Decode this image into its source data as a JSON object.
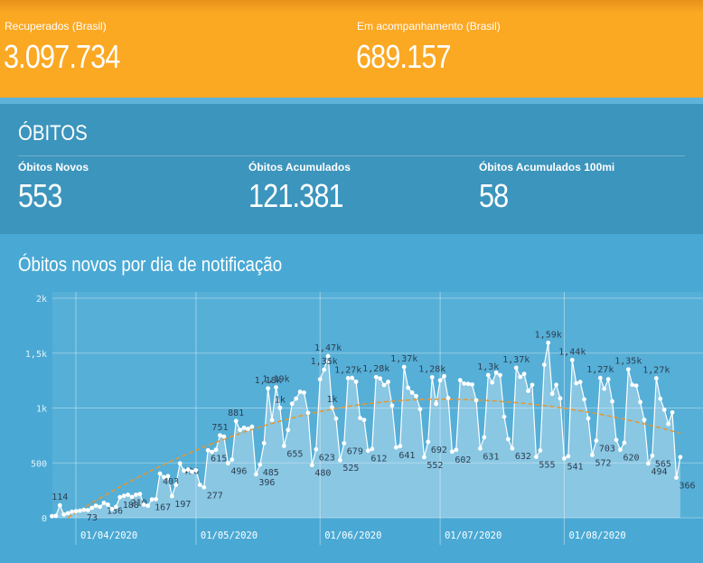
{
  "header": {
    "kpis": [
      {
        "label": "Recuperados (Brasil)",
        "value": "3.097.734"
      },
      {
        "label": "Em acompanhamento (Brasil)",
        "value": "689.157"
      }
    ]
  },
  "obitos": {
    "title": "ÓBITOS",
    "kpis": [
      {
        "label": "Óbitos Novos",
        "value": "553"
      },
      {
        "label": "Óbitos Acumulados",
        "value": "121.381"
      },
      {
        "label": "Óbitos Acumulados 100mi",
        "value": "58"
      }
    ]
  },
  "chart_data": {
    "type": "line",
    "title": "Óbitos novos por dia de notificação",
    "categories": [
      null,
      null,
      null,
      null,
      null,
      null,
      "01/04/2020",
      null,
      null,
      null,
      null,
      null,
      null,
      null,
      null,
      null,
      null,
      null,
      null,
      null,
      null,
      null,
      null,
      null,
      null,
      null,
      null,
      null,
      null,
      null,
      null,
      null,
      null,
      null,
      null,
      null,
      "01/05/2020",
      null,
      null,
      null,
      null,
      null,
      null,
      null,
      null,
      null,
      null,
      null,
      null,
      null,
      null,
      null,
      null,
      null,
      null,
      null,
      null,
      null,
      null,
      null,
      null,
      null,
      null,
      null,
      null,
      null,
      null,
      "01/06/2020",
      null,
      null,
      null,
      null,
      null,
      null,
      null,
      null,
      null,
      null,
      null,
      null,
      null,
      null,
      null,
      null,
      null,
      null,
      null,
      null,
      null,
      null,
      null,
      null,
      null,
      null,
      null,
      null,
      null,
      "01/07/2020",
      null,
      null,
      null,
      null,
      null,
      null,
      null,
      null,
      null,
      null,
      null,
      null,
      null,
      null,
      null,
      null,
      null,
      null,
      null,
      null,
      null,
      null,
      null,
      null,
      null,
      null,
      null,
      null,
      null,
      null,
      "01/08/2020",
      null,
      null,
      null,
      null,
      null,
      null,
      null,
      null,
      null,
      null,
      null,
      null,
      null,
      null,
      null,
      null,
      null,
      null,
      null,
      null,
      null,
      null,
      null,
      null,
      null,
      null,
      null,
      null,
      null
    ],
    "series": [
      {
        "color": "#ffffff",
        "values": [
          15,
          18,
          114,
          30,
          42,
          55,
          60,
          65,
          73,
          70,
          90,
          110,
          100,
          136,
          120,
          80,
          100,
          188,
          200,
          210,
          190,
          210,
          217,
          120,
          110,
          167,
          170,
          403,
          370,
          380,
          197,
          300,
          496,
          430,
          440,
          420,
          435,
          300,
          277,
          615,
          600,
          620,
          751,
          740,
          496,
          530,
          881,
          800,
          820,
          810,
          830,
          396,
          485,
          680,
          1179,
          890,
          1188,
          1001,
          655,
          800,
          1039,
          1086,
          1148,
          1140,
          956,
          480,
          623,
          1262,
          1349,
          1473,
          1005,
          904,
          525,
          679,
          1272,
          1274,
          1239,
          909,
          892,
          612,
          627,
          1282,
          1269,
          1209,
          1238,
          1022,
          641,
          654,
          1374,
          1185,
          1141,
          1109,
          990,
          552,
          692,
          1280,
          1038,
          1252,
          1290,
          1091,
          602,
          620,
          1254,
          1223,
          1220,
          1214,
          1071,
          631,
          733,
          1300,
          1233,
          1322,
          1299,
          921,
          716,
          632,
          1367,
          1284,
          1311,
          1156,
          1211,
          555,
          614,
          1394,
          1594,
          1129,
          1212,
          1088,
          541,
          561,
          1437,
          1226,
          1237,
          1079,
          905,
          572,
          703,
          1274,
          1175,
          1262,
          1060,
          709,
          620,
          684,
          1352,
          1212,
          1204,
          1054,
          892,
          494,
          565,
          1271,
          1085,
          984,
          855,
          960,
          366,
          553
        ],
        "value_labels": [
          null,
          null,
          "114",
          null,
          null,
          null,
          null,
          null,
          "73",
          null,
          null,
          null,
          null,
          "136",
          null,
          null,
          null,
          "188",
          null,
          "210",
          null,
          null,
          null,
          null,
          null,
          "167",
          null,
          "403",
          null,
          null,
          "197",
          null,
          "496",
          null,
          null,
          null,
          null,
          null,
          "277",
          "615",
          null,
          null,
          "751",
          null,
          "496",
          null,
          "881",
          null,
          null,
          null,
          null,
          "396",
          "485",
          null,
          "1,18k",
          null,
          "1,19k",
          "1k",
          "655",
          null,
          null,
          null,
          null,
          null,
          null,
          "480",
          "623",
          null,
          "1,35k",
          "1,47k",
          "1k",
          null,
          "525",
          "679",
          "1,27k",
          null,
          null,
          null,
          null,
          "612",
          null,
          "1,28k",
          null,
          null,
          null,
          null,
          "641",
          null,
          "1,37k",
          null,
          null,
          null,
          null,
          "552",
          "692",
          "1,28k",
          null,
          null,
          null,
          null,
          "602",
          null,
          null,
          null,
          null,
          null,
          null,
          "631",
          null,
          "1,3k",
          null,
          null,
          null,
          null,
          null,
          "632",
          "1,37k",
          null,
          null,
          null,
          null,
          "555",
          null,
          null,
          "1,59k",
          null,
          null,
          null,
          "541",
          null,
          "1,44k",
          null,
          null,
          null,
          null,
          "572",
          "703",
          "1,27k",
          null,
          null,
          null,
          null,
          "620",
          null,
          "1,35k",
          null,
          null,
          null,
          null,
          "494",
          "565",
          "1,27k",
          null,
          null,
          null,
          null,
          "366",
          null
        ]
      },
      {
        "color": "#e8962e",
        "dashed": true,
        "values": [
          null,
          null,
          null,
          null,
          0,
          23,
          46,
          69,
          91,
          113,
          135,
          156,
          178,
          199,
          220,
          240,
          261,
          281,
          301,
          320,
          340,
          359,
          378,
          396,
          415,
          433,
          451,
          468,
          485,
          503,
          519,
          536,
          552,
          569,
          584,
          600,
          615,
          630,
          645,
          660,
          674,
          688,
          702,
          716,
          729,
          742,
          755,
          768,
          780,
          792,
          804,
          816,
          827,
          838,
          849,
          860,
          870,
          880,
          890,
          900,
          909,
          918,
          927,
          936,
          944,
          952,
          960,
          968,
          975,
          982,
          989,
          996,
          1002,
          1008,
          1014,
          1020,
          1025,
          1030,
          1035,
          1040,
          1044,
          1048,
          1052,
          1056,
          1059,
          1062,
          1065,
          1068,
          1070,
          1072,
          1074,
          1076,
          1077,
          1078,
          1079,
          1080,
          1080,
          1080,
          1080,
          1080,
          1079,
          1079,
          1078,
          1077,
          1076,
          1074,
          1073,
          1071,
          1070,
          1068,
          1065,
          1063,
          1061,
          1058,
          1055,
          1052,
          1049,
          1046,
          1042,
          1038,
          1034,
          1030,
          1026,
          1022,
          1017,
          1012,
          1008,
          1003,
          997,
          992,
          986,
          980,
          975,
          968,
          962,
          956,
          949,
          942,
          935,
          928,
          921,
          913,
          906,
          898,
          890,
          882,
          873,
          865,
          856,
          847,
          838,
          829,
          820,
          810,
          800,
          790,
          780,
          770
        ]
      }
    ],
    "ylim": [
      0,
      2000
    ],
    "yticks": [
      0,
      500,
      {
        "value": 1000,
        "label": "1k"
      },
      {
        "value": 1500,
        "label": "1,5k"
      },
      {
        "value": 2000,
        "label": "2k"
      }
    ],
    "grid": true
  }
}
